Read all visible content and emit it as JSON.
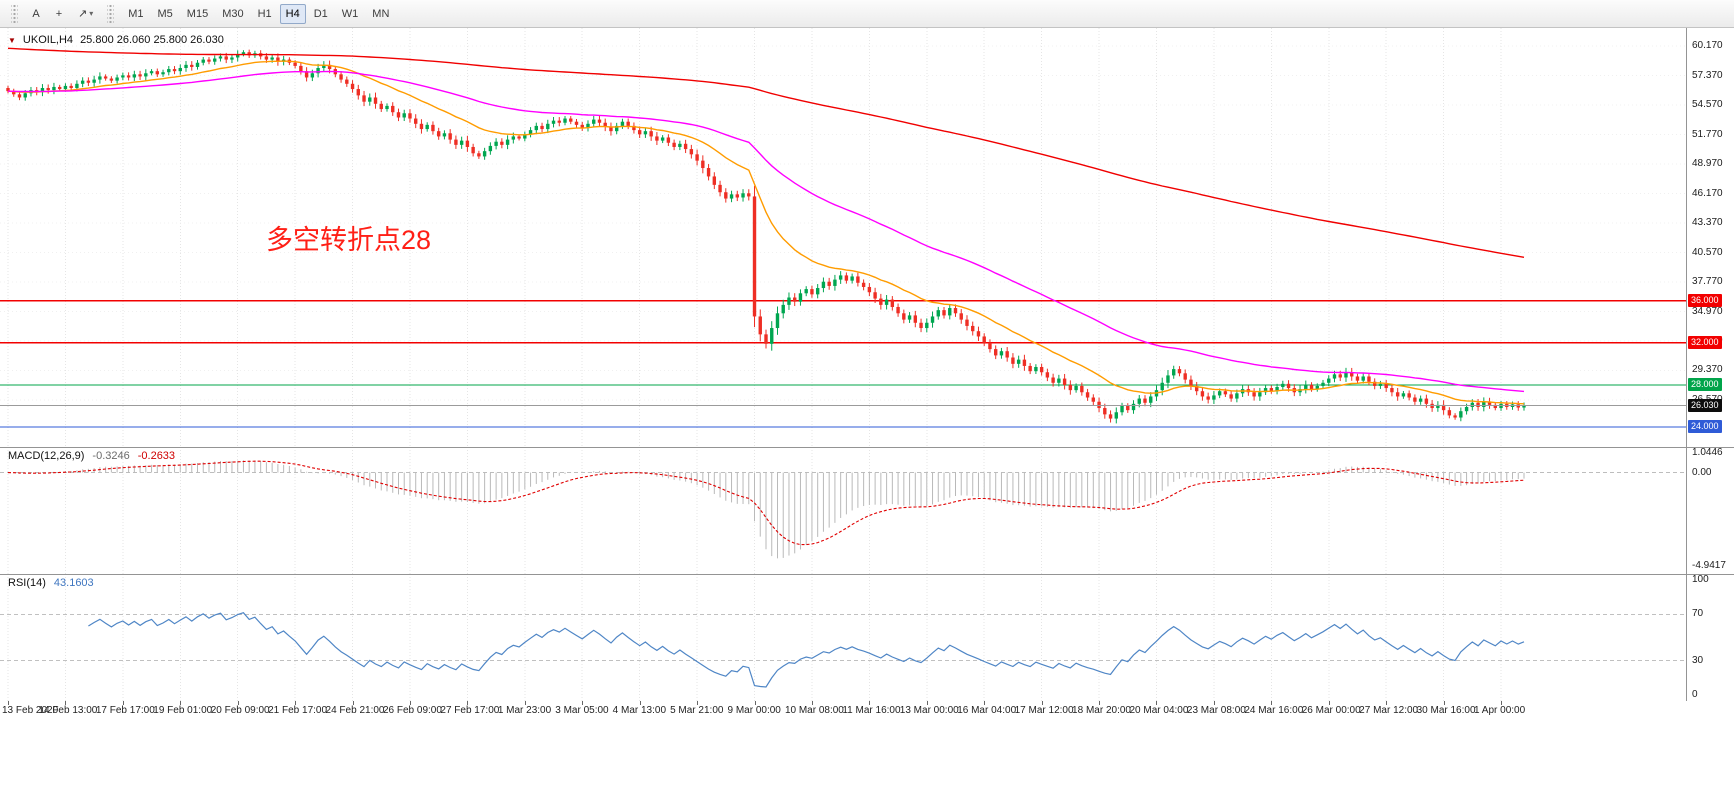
{
  "toolbar": {
    "tools": [
      {
        "id": "text-tool",
        "label": "A"
      },
      {
        "id": "crosshair-tool",
        "label": "+"
      },
      {
        "id": "draw-tool",
        "label": "↗",
        "caret": "▾"
      }
    ],
    "timeframes": [
      "M1",
      "M5",
      "M15",
      "M30",
      "H1",
      "H4",
      "D1",
      "W1",
      "MN"
    ],
    "active_timeframe": "H4"
  },
  "chart": {
    "symbol_tf": "UKOIL,H4",
    "ohlc_text": "25.800 26.060 25.800 26.030",
    "annotation": {
      "text": "多空转折点28",
      "color": "#ff1f16"
    }
  },
  "price_axis": {
    "ticks": [
      60.17,
      57.37,
      54.57,
      51.77,
      48.97,
      46.17,
      43.37,
      40.57,
      37.77,
      34.97,
      32.17,
      29.37,
      26.57
    ],
    "range": [
      22.1,
      61.9
    ]
  },
  "levels": [
    {
      "price": 36.0,
      "label": "36.000",
      "color": "#f20000"
    },
    {
      "price": 32.0,
      "label": "32.000",
      "color": "#f20000"
    },
    {
      "price": 28.0,
      "label": "28.000",
      "color": "#00a44a"
    },
    {
      "price": 24.0,
      "label": "24.000",
      "color": "#2f5bd7"
    }
  ],
  "bid": {
    "price": 26.03,
    "label": "26.030",
    "line_color": "#9b9b9b",
    "badge_bg": "#0d0d0d"
  },
  "indicators": {
    "macd": {
      "label": "MACD(12,26,9)",
      "value_main": "-0.3246",
      "value_signal": "-0.2633",
      "fast": 12,
      "slow": 26,
      "signal": 9,
      "scale_labels": [
        "1.0446",
        "0.00",
        "-4.9417"
      ],
      "scale_values": [
        1.0446,
        0,
        -4.9417
      ],
      "histogram_color": "#b9b9b9",
      "signal_color": "#e00000",
      "zero_line": 0
    },
    "rsi": {
      "label": "RSI(14)",
      "value": "43.1603",
      "period": 14,
      "scale_labels": [
        "100",
        "70",
        "30",
        "0"
      ],
      "scale_values": [
        100,
        70,
        30,
        0
      ],
      "level_lines": [
        70,
        30
      ],
      "line_color": "#4f86c6"
    }
  },
  "chart_data": {
    "type": "candlestick",
    "title": "UKOIL,H4",
    "symbol": "UKOIL",
    "timeframe": "H4",
    "up_color": "#00a650",
    "down_color": "#ee2e24",
    "y_range": [
      22.1,
      61.9
    ],
    "candles_per_label": 10,
    "x_labels": [
      "13 Feb 2020",
      "14 Feb 13:00",
      "17 Feb 17:00",
      "19 Feb 01:00",
      "20 Feb 09:00",
      "21 Feb 17:00",
      "24 Feb 21:00",
      "26 Feb 09:00",
      "27 Feb 17:00",
      "1 Mar 23:00",
      "3 Mar 05:00",
      "4 Mar 13:00",
      "5 Mar 21:00",
      "9 Mar 00:00",
      "10 Mar 08:00",
      "11 Mar 16:00",
      "13 Mar 00:00",
      "16 Mar 04:00",
      "17 Mar 12:00",
      "18 Mar 20:00",
      "20 Mar 04:00",
      "23 Mar 08:00",
      "24 Mar 16:00",
      "26 Mar 00:00",
      "27 Mar 12:00",
      "30 Mar 16:00",
      "1 Apr 00:00"
    ],
    "closes": [
      55.9,
      55.6,
      55.3,
      55.7,
      56.0,
      55.8,
      56.2,
      56.0,
      56.3,
      56.1,
      56.4,
      56.2,
      56.6,
      56.9,
      56.7,
      57.0,
      57.3,
      57.1,
      56.9,
      57.2,
      57.4,
      57.2,
      57.5,
      57.3,
      57.6,
      57.8,
      57.5,
      57.7,
      58.0,
      57.8,
      58.1,
      58.4,
      58.2,
      58.6,
      58.9,
      58.7,
      59.0,
      59.2,
      58.9,
      59.1,
      59.4,
      59.6,
      59.3,
      59.5,
      59.2,
      58.9,
      59.1,
      58.7,
      58.9,
      58.6,
      58.3,
      57.8,
      57.2,
      57.6,
      58.1,
      58.4,
      58.0,
      57.5,
      57.0,
      56.6,
      56.1,
      55.5,
      54.9,
      55.3,
      54.7,
      54.2,
      54.5,
      53.9,
      53.4,
      53.8,
      53.3,
      52.8,
      52.3,
      52.7,
      52.1,
      51.6,
      51.9,
      51.3,
      50.8,
      51.2,
      50.6,
      50.0,
      49.7,
      50.2,
      50.7,
      51.1,
      50.8,
      51.3,
      51.6,
      51.4,
      51.8,
      52.2,
      52.6,
      52.3,
      52.8,
      53.1,
      52.9,
      53.3,
      53.0,
      52.7,
      52.4,
      52.8,
      53.2,
      52.9,
      52.5,
      52.1,
      52.6,
      53.0,
      52.6,
      52.2,
      51.8,
      52.1,
      51.6,
      51.2,
      51.5,
      51.0,
      50.6,
      50.9,
      50.4,
      49.9,
      49.3,
      48.6,
      47.8,
      47.0,
      46.3,
      45.7,
      46.1,
      45.8,
      46.2,
      45.9,
      34.5,
      32.8,
      31.9,
      33.4,
      34.8,
      35.6,
      36.3,
      35.9,
      36.7,
      37.1,
      36.6,
      37.2,
      37.8,
      37.4,
      38.0,
      38.4,
      37.9,
      38.3,
      37.7,
      37.3,
      36.8,
      36.2,
      35.6,
      36.1,
      35.4,
      34.8,
      34.2,
      34.6,
      33.9,
      33.4,
      33.9,
      34.5,
      35.1,
      34.6,
      35.3,
      34.8,
      34.2,
      33.6,
      33.1,
      32.6,
      32.0,
      31.4,
      30.8,
      31.2,
      30.6,
      30.0,
      30.4,
      29.8,
      29.3,
      29.7,
      29.2,
      28.7,
      28.2,
      28.6,
      28.0,
      27.5,
      27.9,
      27.3,
      26.8,
      26.4,
      25.8,
      25.2,
      24.8,
      25.4,
      26.0,
      25.6,
      26.2,
      26.7,
      26.3,
      26.9,
      27.5,
      28.2,
      28.9,
      29.5,
      29.1,
      28.5,
      27.9,
      27.4,
      26.9,
      26.6,
      27.0,
      27.4,
      27.1,
      26.7,
      27.2,
      27.6,
      27.3,
      26.9,
      27.3,
      27.7,
      27.4,
      27.8,
      28.1,
      27.7,
      27.3,
      27.6,
      28.0,
      27.6,
      27.9,
      28.2,
      28.6,
      29.0,
      28.7,
      29.2,
      28.8,
      28.4,
      28.8,
      28.3,
      27.9,
      28.1,
      27.7,
      27.3,
      26.9,
      27.2,
      26.8,
      26.4,
      26.7,
      26.2,
      25.8,
      26.1,
      25.6,
      25.1,
      24.9,
      25.5,
      25.9,
      26.3,
      25.9,
      26.4,
      26.1,
      25.8,
      26.2,
      25.9,
      26.15,
      25.85,
      26.03
    ],
    "moving_averages": [
      {
        "name": "ema-fast",
        "period": 20,
        "color": "#ff9c00"
      },
      {
        "name": "ema-mid",
        "period": 60,
        "color": "#ff00ff"
      },
      {
        "name": "ema-slow",
        "period": 300,
        "seed": 60.0,
        "color": "#f00000"
      }
    ]
  }
}
